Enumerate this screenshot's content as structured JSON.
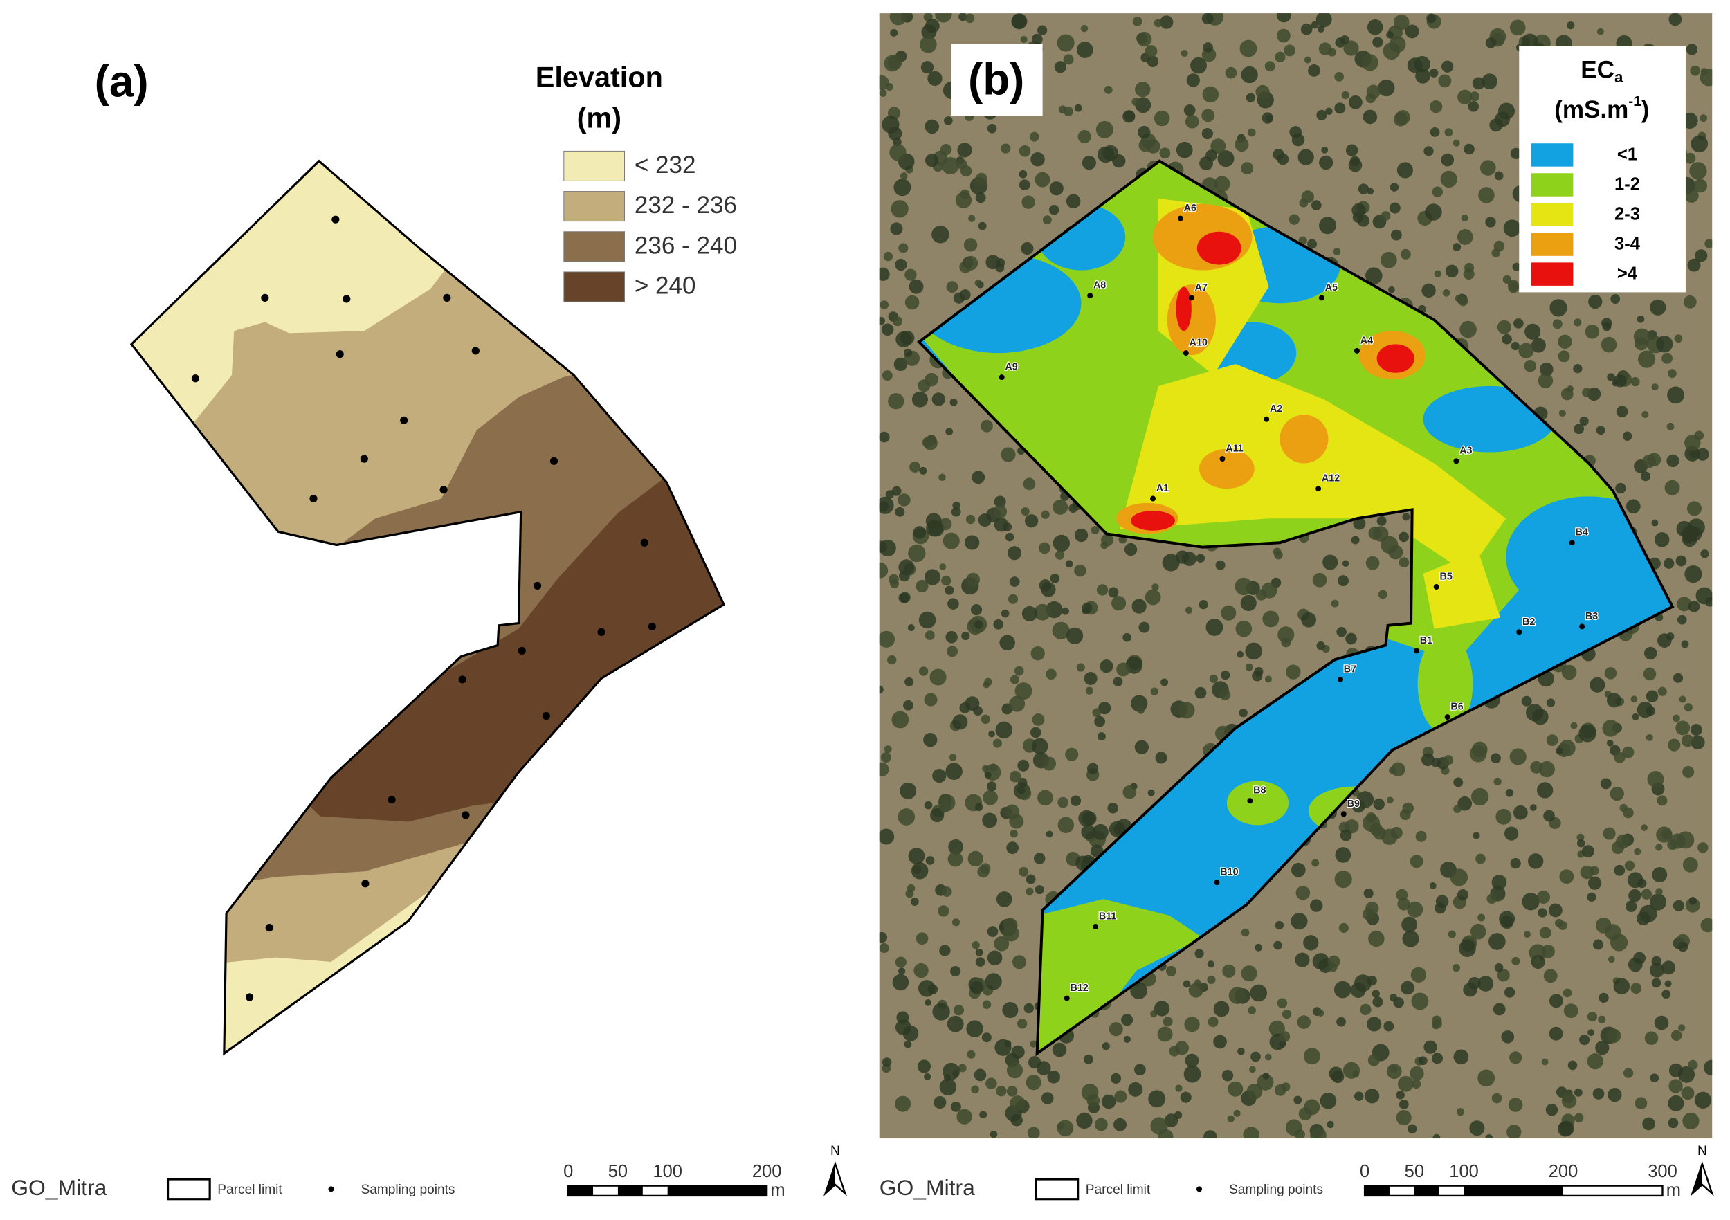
{
  "panels": [
    {
      "label": "(a)",
      "legend": {
        "title": "Elevation",
        "unit": "(m)",
        "classes": [
          "< 232",
          "232 - 236",
          "236 - 240",
          "> 240"
        ]
      }
    },
    {
      "label": "(b)",
      "legend": {
        "title": "EC",
        "title_subscript": "a",
        "unit": "(mS.m",
        "unit_superscript": "-1",
        "unit_close": ")",
        "classes": [
          "<1",
          "1-2",
          "2-3",
          "3-4",
          ">4"
        ]
      },
      "sampling_points": [
        "A6",
        "A7",
        "A5",
        "A8",
        "A10",
        "A4",
        "A9",
        "A2",
        "A11",
        "A3",
        "A12",
        "A1",
        "B4",
        "B5",
        "B2",
        "B3",
        "B1",
        "B7",
        "B6",
        "B8",
        "B9",
        "B10",
        "B11",
        "B12"
      ]
    }
  ],
  "footers": [
    {
      "site": "GO_Mitra",
      "parcel_limit": "Parcel limit",
      "sampling_points": "Sampling points",
      "scale_labels": [
        0,
        50,
        100,
        200
      ],
      "scale_unit": "m",
      "north": "N"
    },
    {
      "site": "GO_Mitra",
      "parcel_limit": "Parcel limit",
      "sampling_points": "Sampling points",
      "scale_labels": [
        0,
        50,
        100,
        200,
        300
      ],
      "scale_unit": "m",
      "north": "N"
    }
  ]
}
